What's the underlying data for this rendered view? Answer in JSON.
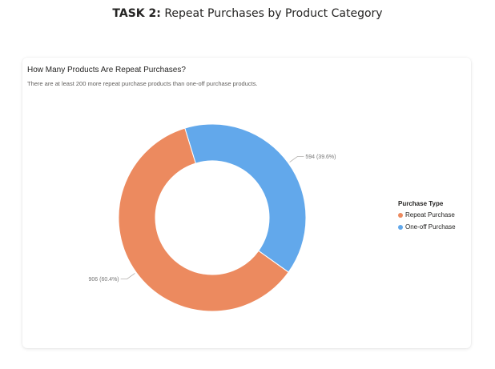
{
  "page": {
    "title_bold": "TASK 2:",
    "title_rest": "Repeat Purchases by Product Category"
  },
  "card": {
    "title": "How Many Products Are Repeat Purchases?",
    "subtitle": "There are at least 200 more repeat purchase products than one-off purchase products."
  },
  "chart_data": {
    "type": "pie",
    "variant": "donut",
    "legend_title": "Purchase Type",
    "legend_position": "right",
    "series": [
      {
        "name": "Repeat Purchase",
        "value": 906,
        "label": "906 (60.4%)",
        "color": "#ec8a5f"
      },
      {
        "name": "One-off Purchase",
        "value": 594,
        "label": "594 (39.6%)",
        "color": "#62a8eb"
      }
    ]
  }
}
